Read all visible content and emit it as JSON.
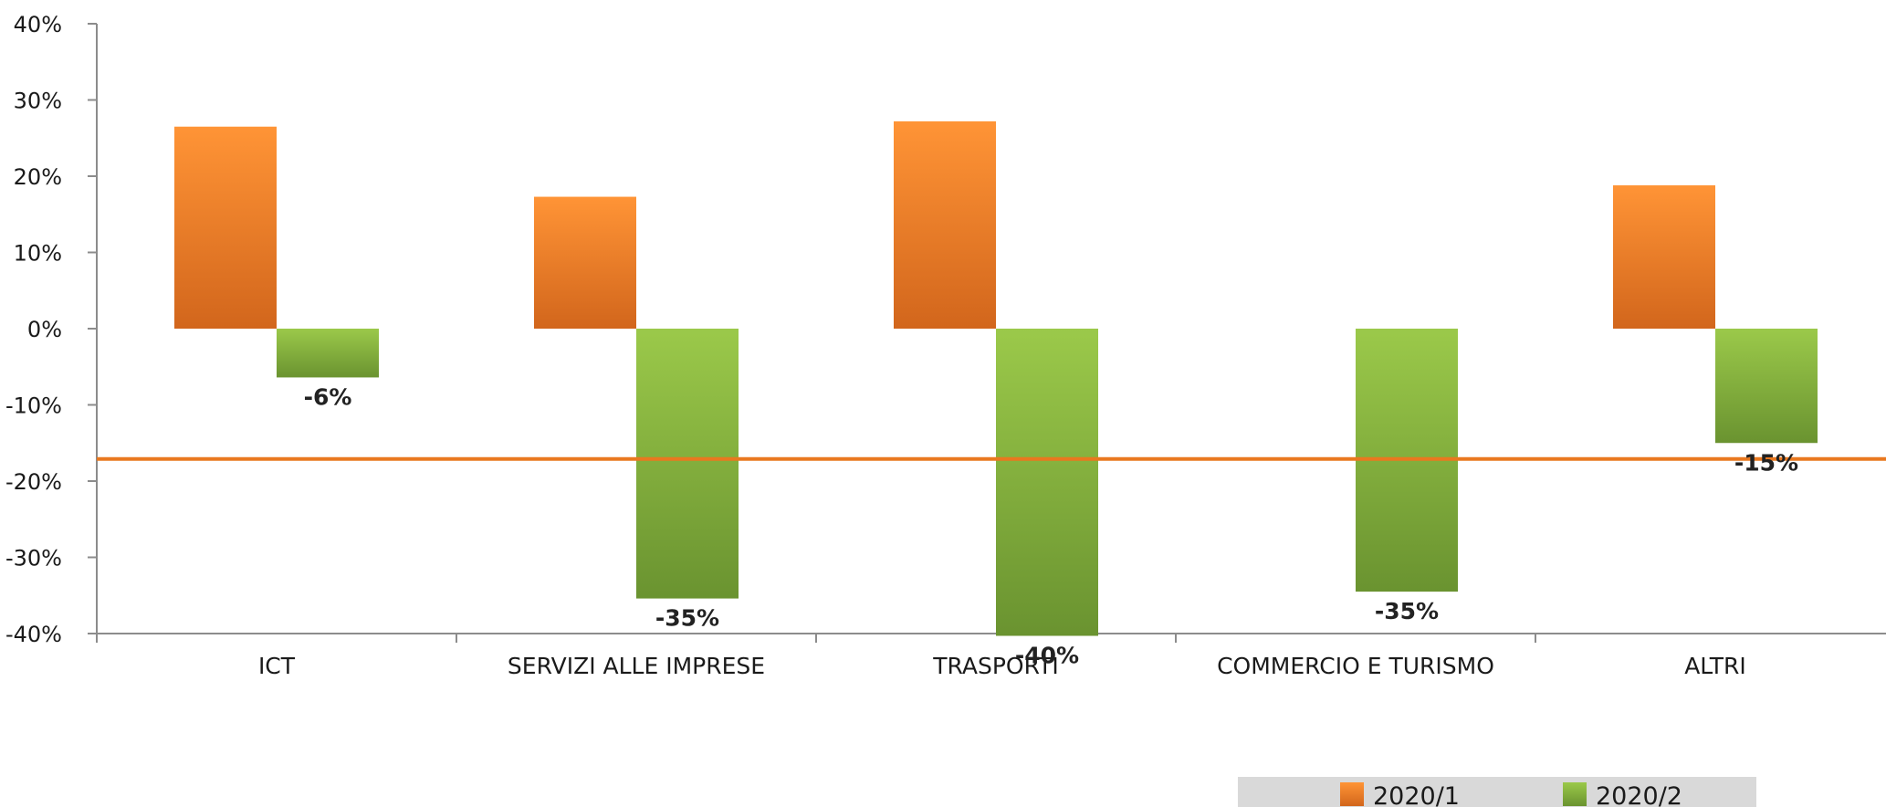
{
  "chart_data": {
    "type": "bar",
    "categories": [
      "ICT",
      "SERVIZI ALLE IMPRESE",
      "TRASPORTI",
      "COMMERCIO E TURISMO",
      "ALTRI"
    ],
    "series": [
      {
        "name": "2020/1",
        "values": [
          26.5,
          17.3,
          27.2,
          null,
          18.8
        ],
        "color": "#e9781f",
        "data_labels": [
          "",
          "",
          "",
          "",
          ""
        ]
      },
      {
        "name": "2020/2",
        "values": [
          -6.4,
          -35.4,
          -40.3,
          -34.5,
          -15.0
        ],
        "color": "#7fa83a",
        "data_labels": [
          "-6%",
          "-35%",
          "-40%",
          "-35%",
          "-15%"
        ]
      }
    ],
    "reference_line": {
      "value": -17.1,
      "color": "#e9781f"
    },
    "ylim": [
      -40,
      40
    ],
    "yticks": [
      40,
      30,
      20,
      10,
      0,
      -10,
      -20,
      -30,
      -40
    ],
    "ytick_labels": [
      "40%",
      "30%",
      "20%",
      "10%",
      "0%",
      "-10%",
      "-20%",
      "-30%",
      "-40%"
    ],
    "title": "",
    "xlabel": "",
    "ylabel": "",
    "grid": false,
    "legend_position": "bottom-right"
  }
}
